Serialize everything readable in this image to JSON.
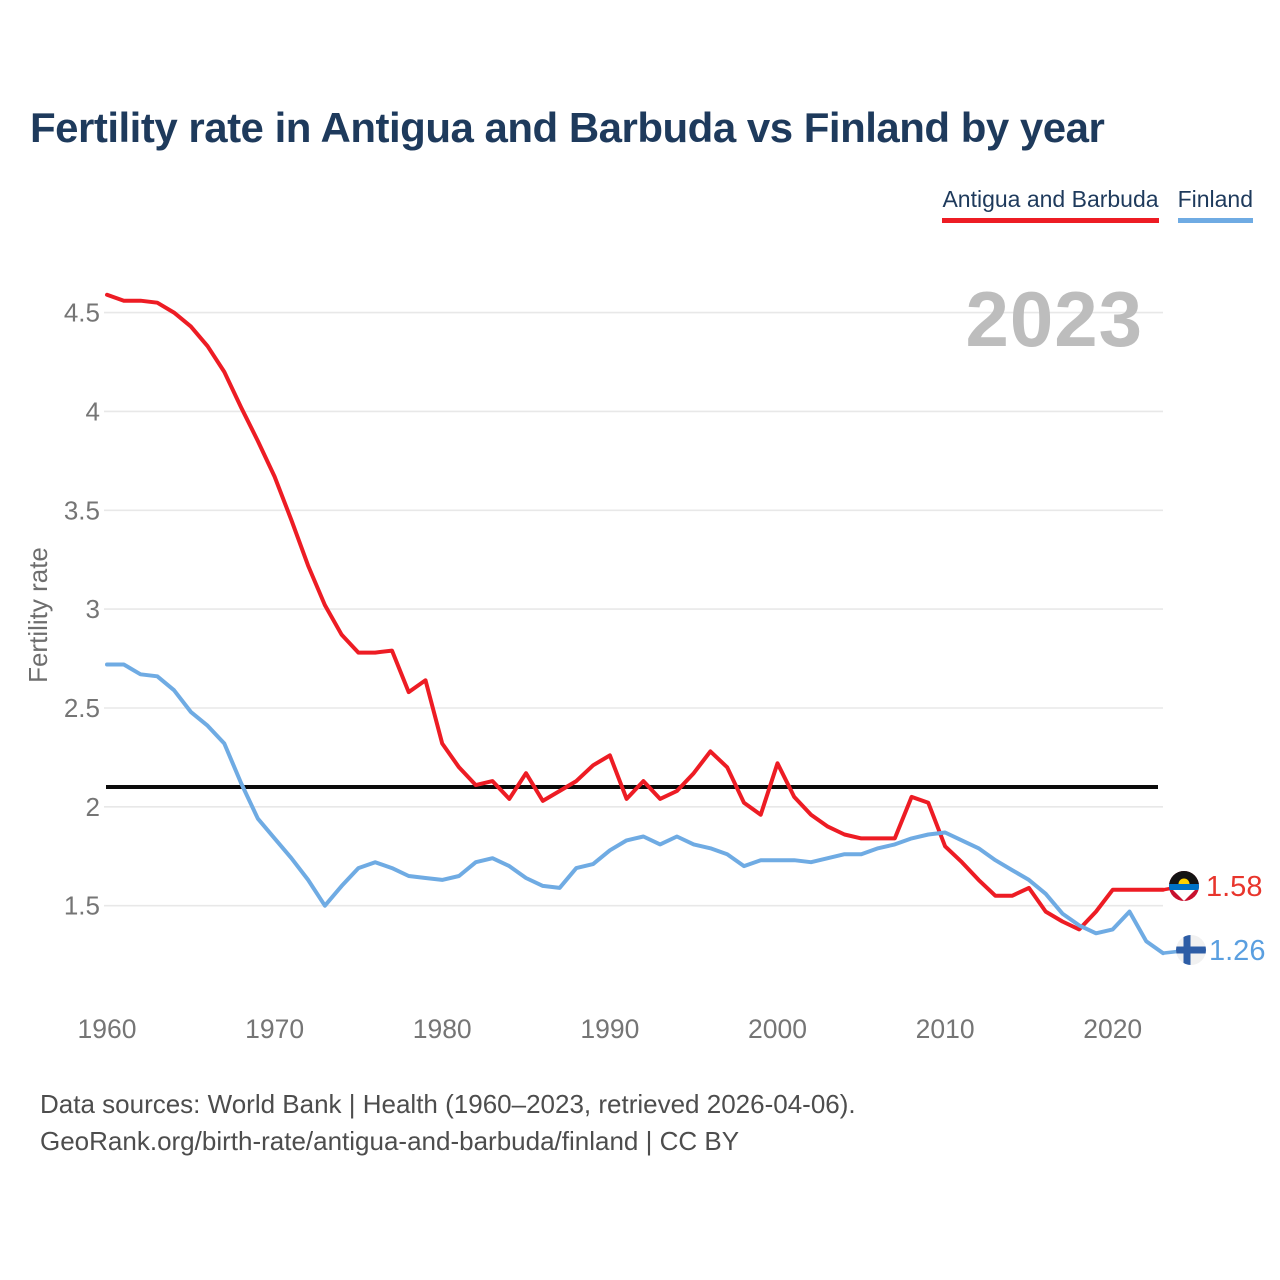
{
  "title": "Fertility rate in Antigua and Barbuda vs Finland by year",
  "legend": {
    "items": [
      {
        "label": "Antigua and Barbuda",
        "color": "#ed1c24"
      },
      {
        "label": "Finland",
        "color": "#6fabe3"
      }
    ]
  },
  "watermark": "2023",
  "footer": {
    "line1": "Data sources: World Bank | Health (1960–2023, retrieved 2026-04-06).",
    "line2": "GeoRank.org/birth-rate/antigua-and-barbuda/finland | CC BY"
  },
  "chart_data": {
    "type": "line",
    "title": "Fertility rate in Antigua and Barbuda vs Finland by year",
    "xlabel": "",
    "ylabel": "Fertility rate",
    "x_start": 1960,
    "x_end": 2023,
    "x_step": 1,
    "x_ticks": [
      1960,
      1970,
      1980,
      1990,
      2000,
      2010,
      2020
    ],
    "y_ticks": [
      {
        "value": 4.5,
        "label": "4.5"
      },
      {
        "value": 4.0,
        "label": "4"
      },
      {
        "value": 3.5,
        "label": "3.5"
      },
      {
        "value": 3.0,
        "label": "3"
      },
      {
        "value": 2.5,
        "label": "2.5"
      },
      {
        "value": 2.0,
        "label": "2"
      },
      {
        "value": 1.5,
        "label": "1.5"
      }
    ],
    "ylim": [
      1.15,
      4.72
    ],
    "grid": true,
    "legend_position": "top-right",
    "refline": {
      "value": 2.1,
      "color": "#0b0b0b"
    },
    "series": [
      {
        "name": "Antigua and Barbuda",
        "color": "#ed1c24",
        "end_label": "1.58",
        "end_label_color": "#e8352c",
        "flag_icon": "antigua-and-barbuda-flag-icon",
        "values": [
          4.59,
          4.56,
          4.56,
          4.55,
          4.5,
          4.43,
          4.33,
          4.2,
          4.02,
          3.85,
          3.67,
          3.45,
          3.22,
          3.02,
          2.87,
          2.78,
          2.78,
          2.79,
          2.58,
          2.64,
          2.32,
          2.2,
          2.11,
          2.13,
          2.04,
          2.17,
          2.03,
          2.08,
          2.13,
          2.21,
          2.26,
          2.04,
          2.13,
          2.04,
          2.08,
          2.17,
          2.28,
          2.2,
          2.02,
          1.96,
          2.22,
          2.05,
          1.96,
          1.9,
          1.86,
          1.84,
          1.84,
          1.84,
          2.05,
          2.02,
          1.8,
          1.72,
          1.63,
          1.55,
          1.55,
          1.59,
          1.47,
          1.42,
          1.38,
          1.47,
          1.58,
          1.58,
          1.58,
          1.58
        ]
      },
      {
        "name": "Finland",
        "color": "#6fabe3",
        "end_label": "1.26",
        "end_label_color": "#5a9fe0",
        "flag_icon": "finland-flag-icon",
        "values": [
          2.72,
          2.72,
          2.67,
          2.66,
          2.59,
          2.48,
          2.41,
          2.32,
          2.12,
          1.94,
          1.84,
          1.74,
          1.63,
          1.5,
          1.6,
          1.69,
          1.72,
          1.69,
          1.65,
          1.64,
          1.63,
          1.65,
          1.72,
          1.74,
          1.7,
          1.64,
          1.6,
          1.59,
          1.69,
          1.71,
          1.78,
          1.83,
          1.85,
          1.81,
          1.85,
          1.81,
          1.79,
          1.76,
          1.7,
          1.73,
          1.73,
          1.73,
          1.72,
          1.74,
          1.76,
          1.76,
          1.79,
          1.81,
          1.84,
          1.86,
          1.87,
          1.83,
          1.79,
          1.73,
          1.68,
          1.63,
          1.56,
          1.46,
          1.4,
          1.36,
          1.38,
          1.47,
          1.32,
          1.26
        ]
      }
    ],
    "colors": {
      "title": "#1e3a5c",
      "tick_label": "#757575",
      "axis_title": "#6e6e6e",
      "gridline": "#e8e8e8",
      "watermark": "#bdbdbd",
      "background": "#ffffff"
    }
  }
}
